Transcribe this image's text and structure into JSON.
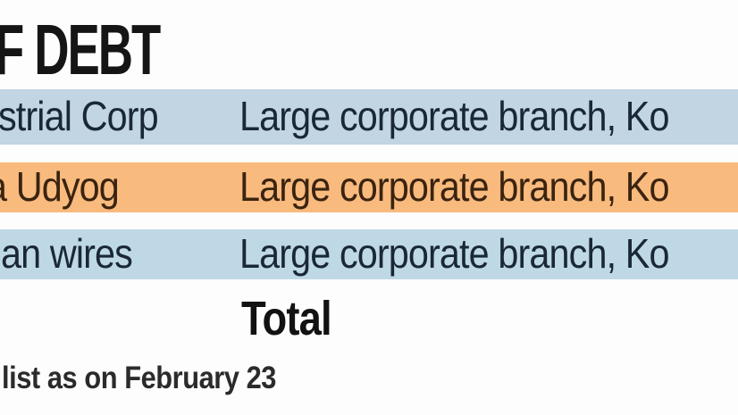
{
  "title": "F DEBT",
  "table": {
    "rows": [
      {
        "name": "strial Corp",
        "branch": "Large corporate branch, Ko",
        "bg": "#c1d5e3"
      },
      {
        "name": "a Udyog",
        "branch": "Large corporate branch, Ko",
        "bg": "#f9ba7e"
      },
      {
        "name": "an wires",
        "branch": "Large corporate branch, Ko",
        "bg": "#bfd8e6"
      }
    ],
    "total_label": "Total"
  },
  "footnote": "list as on February 23",
  "colors": {
    "row_blue": "#c1d5e3",
    "row_orange": "#f9ba7e",
    "text_blue_row": "#1a2836",
    "text_orange_row": "#3a2410",
    "title_text": "#151515",
    "background": "#fdfdfd"
  }
}
